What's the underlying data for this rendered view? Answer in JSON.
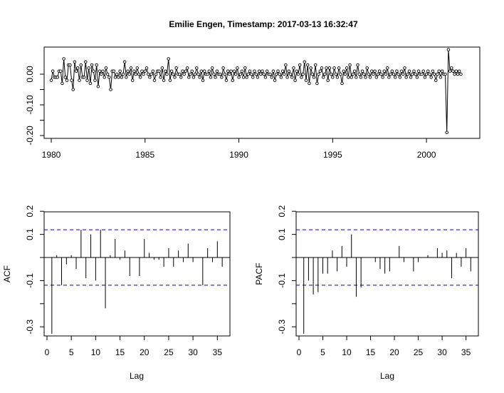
{
  "title": "Emilie Engen, Timestamp: 2017-03-13 16:32:47",
  "colors": {
    "line": "#000000",
    "ci": "#0000cc",
    "background": "#ffffff"
  },
  "chart_data": [
    {
      "type": "line",
      "x_start": 1980.0,
      "x_step": 0.0833333,
      "xlim": [
        1980,
        2002.5
      ],
      "x_ticks": [
        "1980",
        "1985",
        "1990",
        "1995",
        "2000"
      ],
      "ylim": [
        -0.2,
        0.08
      ],
      "y_ticks": [
        "-0.20",
        "-0.10",
        "0.00"
      ],
      "markers": "open-circle",
      "series": [
        {
          "values": [
            -0.02,
            0.01,
            -0.01,
            -0.01,
            -0.01,
            0.01,
            0.01,
            -0.03,
            0.05,
            -0.01,
            -0.02,
            0.03,
            0.03,
            -0.02,
            -0.05,
            0.04,
            0.01,
            0.02,
            -0.02,
            0.03,
            -0.01,
            -0.01,
            0.04,
            -0.02,
            0.02,
            -0.03,
            0.03,
            0.01,
            -0.02,
            0.03,
            -0.04,
            0.01,
            0.0,
            0.01,
            -0.01,
            0.02,
            0.0,
            -0.01,
            -0.05,
            0.01,
            0.01,
            -0.01,
            0.0,
            -0.01,
            0.01,
            -0.01,
            0.0,
            0.04,
            -0.01,
            0.01,
            0.0,
            0.02,
            -0.02,
            0.01,
            0.0,
            0.02,
            0.0,
            -0.01,
            0.01,
            0.0,
            0.01,
            0.02,
            0.0,
            -0.01,
            0.0,
            0.01,
            -0.02,
            0.0,
            0.01,
            0.01,
            -0.01,
            0.02,
            -0.02,
            0.01,
            0.0,
            0.05,
            -0.02,
            0.01,
            0.0,
            -0.01,
            0.02,
            0.0,
            0.0,
            -0.01,
            0.01,
            0.0,
            0.01,
            0.02,
            -0.01,
            0.0,
            0.01,
            -0.01,
            0.0,
            0.02,
            0.0,
            -0.01,
            0.01,
            -0.02,
            0.01,
            0.0,
            0.0,
            0.01,
            -0.01,
            0.02,
            0.0,
            -0.01,
            0.01,
            0.0,
            0.0,
            -0.01,
            0.02,
            0.0,
            -0.02,
            0.01,
            0.0,
            0.01,
            -0.02,
            0.01,
            0.0,
            0.02,
            -0.01,
            0.0,
            0.01,
            -0.01,
            0.02,
            -0.01,
            0.0,
            0.01,
            0.0,
            -0.01,
            0.01,
            0.0,
            -0.01,
            0.01,
            0.0,
            0.01,
            0.0,
            -0.01,
            0.01,
            0.0,
            0.0,
            -0.01,
            0.01,
            -0.02,
            0.0,
            0.01,
            0.0,
            -0.01,
            0.01,
            0.0,
            0.03,
            -0.01,
            0.01,
            0.0,
            -0.01,
            0.02,
            -0.02,
            0.01,
            0.0,
            0.03,
            -0.01,
            0.0,
            0.04,
            -0.02,
            0.03,
            -0.03,
            0.02,
            0.0,
            -0.01,
            0.03,
            -0.03,
            0.0,
            0.01,
            0.02,
            -0.01,
            0.0,
            0.02,
            -0.02,
            0.02,
            0.0,
            -0.01,
            0.02,
            0.0,
            -0.01,
            0.02,
            0.0,
            -0.03,
            0.01,
            0.0,
            0.02,
            -0.01,
            0.03,
            -0.01,
            0.0,
            0.01,
            -0.01,
            0.03,
            0.0,
            -0.01,
            0.01,
            0.0,
            -0.01,
            0.02,
            0.0,
            -0.01,
            0.01,
            0.0,
            0.01,
            -0.01,
            0.0,
            0.01,
            0.0,
            -0.01,
            0.01,
            0.0,
            0.02,
            -0.01,
            0.0,
            0.01,
            0.0,
            -0.01,
            0.01,
            0.0,
            -0.01,
            0.01,
            0.0,
            0.02,
            -0.01,
            0.0,
            0.01,
            -0.01,
            0.0,
            0.01,
            0.0,
            -0.01,
            0.01,
            0.0,
            0.0,
            0.01,
            -0.01,
            0.0,
            0.01,
            0.0,
            -0.01,
            0.01,
            0.0,
            -0.02,
            0.0,
            0.01,
            -0.01,
            0.01,
            0.0,
            0.0,
            -0.19,
            0.08,
            0.01,
            0.02,
            0.01,
            0.0,
            0.01,
            0.0,
            0.01,
            0.0
          ]
        }
      ]
    },
    {
      "type": "bar",
      "xlabel": "Lag",
      "ylabel": "ACF",
      "lags": [
        1,
        2,
        3,
        4,
        5,
        6,
        7,
        8,
        9,
        10,
        11,
        12,
        13,
        14,
        15,
        16,
        17,
        18,
        19,
        20,
        21,
        22,
        23,
        24,
        25,
        26,
        27,
        28,
        29,
        30,
        31,
        32,
        33,
        34,
        35,
        36
      ],
      "values": [
        -0.33,
        0.01,
        -0.12,
        -0.03,
        0.01,
        -0.05,
        0.12,
        -0.09,
        0.1,
        -0.1,
        0.12,
        -0.22,
        0.01,
        0.08,
        -0.01,
        0.03,
        -0.08,
        0.0,
        -0.08,
        0.08,
        0.02,
        -0.01,
        -0.01,
        -0.04,
        0.04,
        -0.04,
        0.03,
        -0.02,
        0.06,
        -0.02,
        0.0,
        -0.12,
        0.04,
        -0.02,
        0.07,
        -0.04
      ],
      "ci": [
        0.12,
        -0.12
      ],
      "xlim": [
        0,
        37
      ],
      "ylim": [
        -0.35,
        0.22
      ],
      "x_ticks": [
        "0",
        "5",
        "10",
        "15",
        "20",
        "25",
        "30",
        "35"
      ],
      "y_ticks": [
        "-0.3",
        "-0.1",
        "0.1",
        "0.2"
      ]
    },
    {
      "type": "bar",
      "xlabel": "Lag",
      "ylabel": "PACF",
      "lags": [
        1,
        2,
        3,
        4,
        5,
        6,
        7,
        8,
        9,
        10,
        11,
        12,
        13,
        14,
        15,
        16,
        17,
        18,
        19,
        20,
        21,
        22,
        23,
        24,
        25,
        26,
        27,
        28,
        29,
        30,
        31,
        32,
        33,
        34,
        35,
        36
      ],
      "values": [
        -0.33,
        -0.1,
        -0.16,
        -0.15,
        -0.07,
        -0.07,
        0.03,
        -0.06,
        0.05,
        -0.04,
        0.1,
        -0.17,
        -0.13,
        0.0,
        0.0,
        -0.02,
        -0.05,
        -0.07,
        -0.06,
        0.0,
        0.05,
        -0.02,
        0.0,
        -0.06,
        -0.02,
        0.0,
        0.01,
        0.0,
        0.04,
        0.02,
        0.03,
        -0.09,
        0.02,
        -0.04,
        0.04,
        -0.06
      ],
      "ci": [
        0.12,
        -0.12
      ],
      "xlim": [
        0,
        37
      ],
      "ylim": [
        -0.35,
        0.22
      ],
      "x_ticks": [
        "0",
        "5",
        "10",
        "15",
        "20",
        "25",
        "30",
        "35"
      ],
      "y_ticks": [
        "-0.3",
        "-0.1",
        "0.1",
        "0.2"
      ]
    }
  ]
}
